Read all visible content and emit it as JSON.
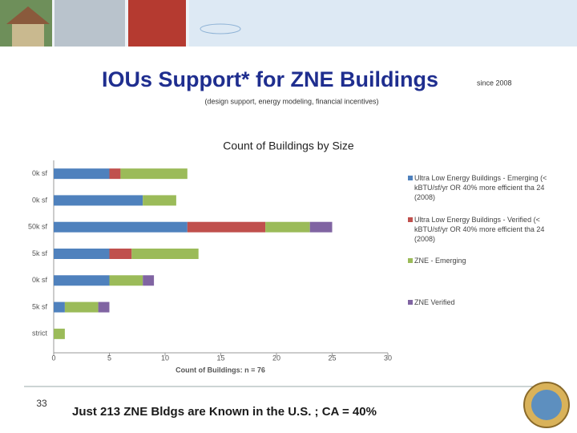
{
  "slide": {
    "title": "IOUs Support* for ZNE Buildings",
    "since": "since 2008",
    "subtitle": "(design support, energy modeling, financial incentives)",
    "page_number": "33",
    "footer": "Just 213 ZNE Bldgs are Known in the U.S. ; CA = 40%"
  },
  "chart_data": {
    "type": "stacked-barh",
    "title": "Count of Buildings by Size",
    "xlabel": "Count of Buildings: n = 76",
    "categories": [
      "0k sf",
      "0k sf",
      "50k sf",
      "5k sf",
      "0k sf",
      "5k sf",
      "strict"
    ],
    "series": [
      {
        "name": "Ultra Low Energy Buildings - Emerging (< kBTU/sf/yr OR 40% more efficient tha 24 (2008)",
        "color": "#4f81bd",
        "values": [
          5,
          8,
          12,
          5,
          5,
          1,
          0
        ]
      },
      {
        "name": "Ultra Low Energy Buildings - Verified (< kBTU/sf/yr OR 40% more efficient tha 24 (2008)",
        "color": "#c0504d",
        "values": [
          1,
          0,
          7,
          2,
          0,
          0,
          0
        ]
      },
      {
        "name": "ZNE - Emerging",
        "color": "#9bbb59",
        "values": [
          6,
          3,
          4,
          6,
          3,
          3,
          1
        ]
      },
      {
        "name": "ZNE Verified",
        "color": "#8064a2",
        "values": [
          0,
          0,
          2,
          0,
          1,
          1,
          0
        ]
      }
    ],
    "xlim": [
      0,
      30
    ],
    "xticks": [
      0,
      5,
      10,
      15,
      20,
      25,
      30
    ],
    "grid": false
  }
}
